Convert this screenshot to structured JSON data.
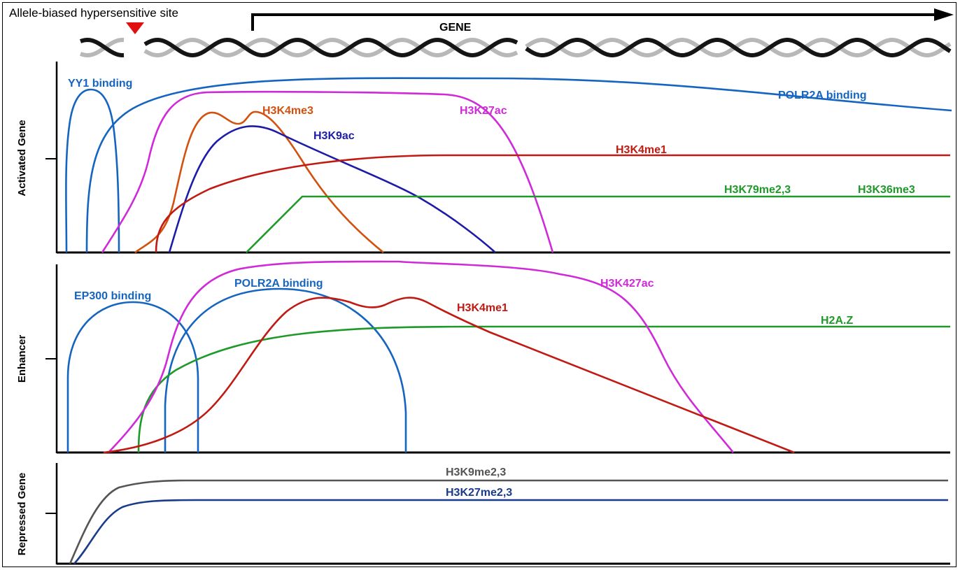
{
  "header": {
    "site_label": "Allele-biased hypersensitive site",
    "gene_label": "GENE"
  },
  "panels": {
    "activated": {
      "axis_label": "Activated Gene",
      "tracks": [
        {
          "key": "yy1",
          "label": "YY1 binding",
          "color": "#1565c0"
        },
        {
          "key": "polr2a",
          "label": "POLR2A binding",
          "color": "#1565c0"
        },
        {
          "key": "h3k4me3",
          "label": "H3K4me3",
          "color": "#d2510f"
        },
        {
          "key": "h3k27ac",
          "label": "H3K27ac",
          "color": "#d02ad8"
        },
        {
          "key": "h3k9ac",
          "label": "H3K9ac",
          "color": "#1c1ca8"
        },
        {
          "key": "h3k4me1",
          "label": "H3K4me1",
          "color": "#c01a12"
        },
        {
          "key": "h3k79",
          "label": "H3K79me2,3",
          "color": "#1f9a2a"
        },
        {
          "key": "h3k36",
          "label": "H3K36me3",
          "color": "#1f9a2a"
        }
      ]
    },
    "enhancer": {
      "axis_label": "Enhancer",
      "tracks": [
        {
          "key": "ep300",
          "label": "EP300 binding",
          "color": "#1565c0"
        },
        {
          "key": "polr2a",
          "label": "POLR2A binding",
          "color": "#1565c0"
        },
        {
          "key": "h3k427ac",
          "label": "H3K427ac",
          "color": "#d02ad8"
        },
        {
          "key": "h3k4me1",
          "label": "H3K4me1",
          "color": "#c01a12"
        },
        {
          "key": "h2az",
          "label": "H2A.Z",
          "color": "#1f9a2a"
        }
      ]
    },
    "repressed": {
      "axis_label": "Repressed Gene",
      "tracks": [
        {
          "key": "h3k9me",
          "label": "H3K9me2,3",
          "color": "#555555"
        },
        {
          "key": "h3k27me",
          "label": "H3K27me2,3",
          "color": "#1a3a8c"
        }
      ]
    }
  },
  "colors": {
    "marker": "#e01010",
    "axis": "#000000",
    "axis_tick_accent": "#7a1a1a",
    "dna_light": "#b8b8b8",
    "dna_dark": "#151515"
  }
}
